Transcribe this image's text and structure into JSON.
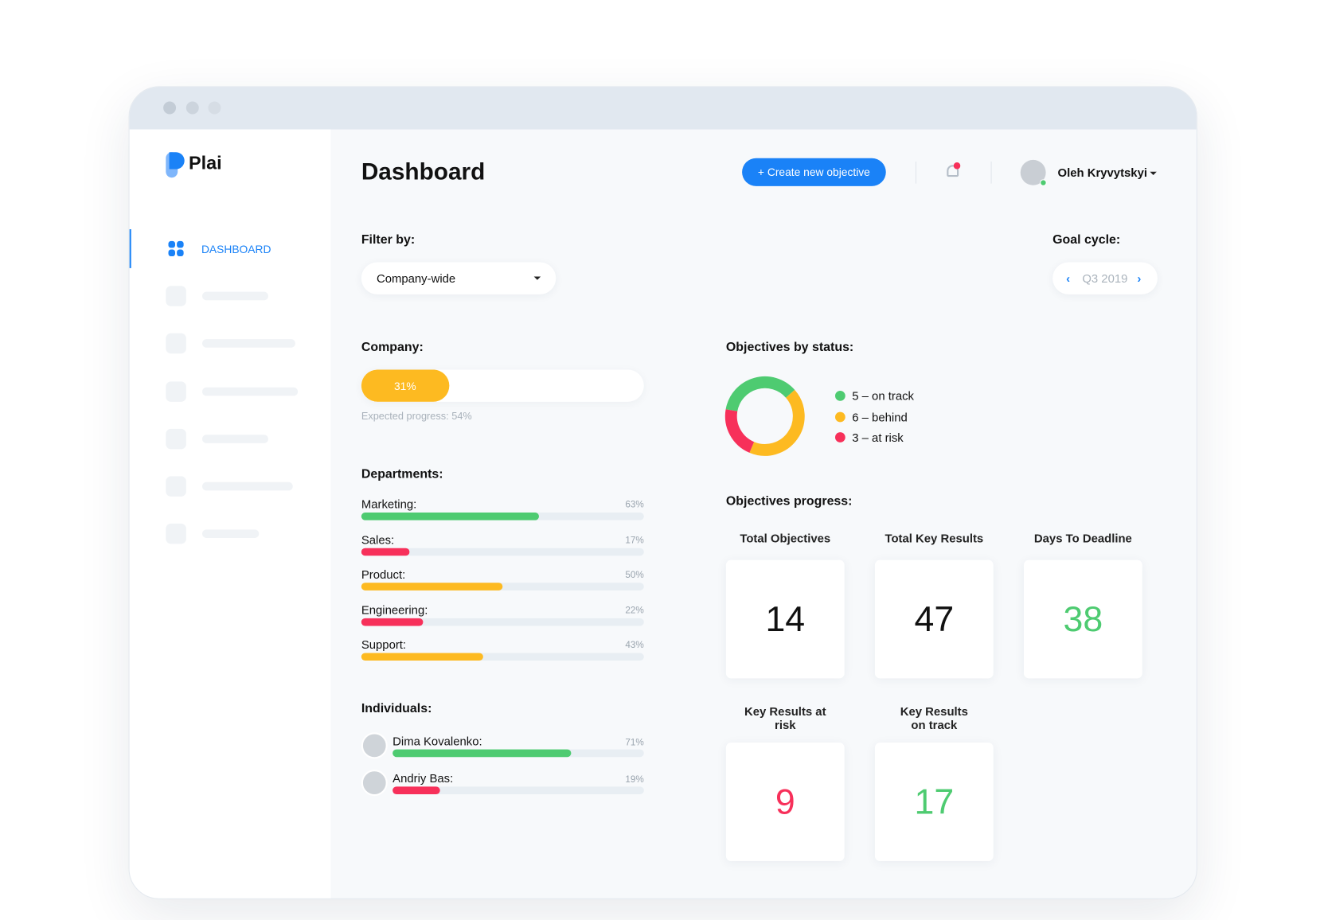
{
  "app": {
    "logo": "Plai",
    "nav_active": "DASHBOARD"
  },
  "header": {
    "title": "Dashboard",
    "create_button": "+ Create new objective",
    "user_name": "Oleh Kryvytskyi"
  },
  "filter": {
    "label": "Filter by:",
    "value": "Company-wide"
  },
  "goal_cycle": {
    "label": "Goal cycle:",
    "value": "Q3 2019"
  },
  "company": {
    "title": "Company:",
    "progress": {
      "value": 31,
      "label": "31%"
    },
    "expected": "Expected progress: 54%",
    "color": "#fdba21"
  },
  "departments": {
    "title": "Departments:",
    "items": [
      {
        "name": "Marketing:",
        "value": 63,
        "label": "63%",
        "color": "#4ecb71"
      },
      {
        "name": "Sales:",
        "value": 17,
        "label": "17%",
        "color": "#f7305a"
      },
      {
        "name": "Product:",
        "value": 50,
        "label": "50%",
        "color": "#fdba21"
      },
      {
        "name": "Engineering:",
        "value": 22,
        "label": "22%",
        "color": "#f7305a"
      },
      {
        "name": "Support:",
        "value": 43,
        "label": "43%",
        "color": "#fdba21"
      }
    ]
  },
  "individuals": {
    "title": "Individuals:",
    "items": [
      {
        "name": "Dima Kovalenko:",
        "value": 71,
        "label": "71%",
        "color": "#4ecb71"
      },
      {
        "name": "Andriy Bas:",
        "value": 19,
        "label": "19%",
        "color": "#f7305a"
      }
    ]
  },
  "objectives_status": {
    "title": "Objectives by status:",
    "items": [
      {
        "count": 5,
        "label": "5 – on track",
        "color": "#4ecb71"
      },
      {
        "count": 6,
        "label": "6 – behind",
        "color": "#fdba21"
      },
      {
        "count": 3,
        "label": "3 – at risk",
        "color": "#f7305a"
      }
    ]
  },
  "objectives_progress": {
    "title": "Objectives progress:",
    "cards": [
      {
        "label": "Total Objectives",
        "value": 14,
        "color": "#111111"
      },
      {
        "label": "Total Key Results",
        "value": 47,
        "color": "#111111"
      },
      {
        "label": "Days To Deadline",
        "value": 38,
        "color": "#4ecb71"
      },
      {
        "label": "Key Results at risk",
        "value": 9,
        "color": "#f7305a"
      },
      {
        "label": "Key Results on track",
        "value": 17,
        "color": "#4ecb71"
      }
    ]
  }
}
